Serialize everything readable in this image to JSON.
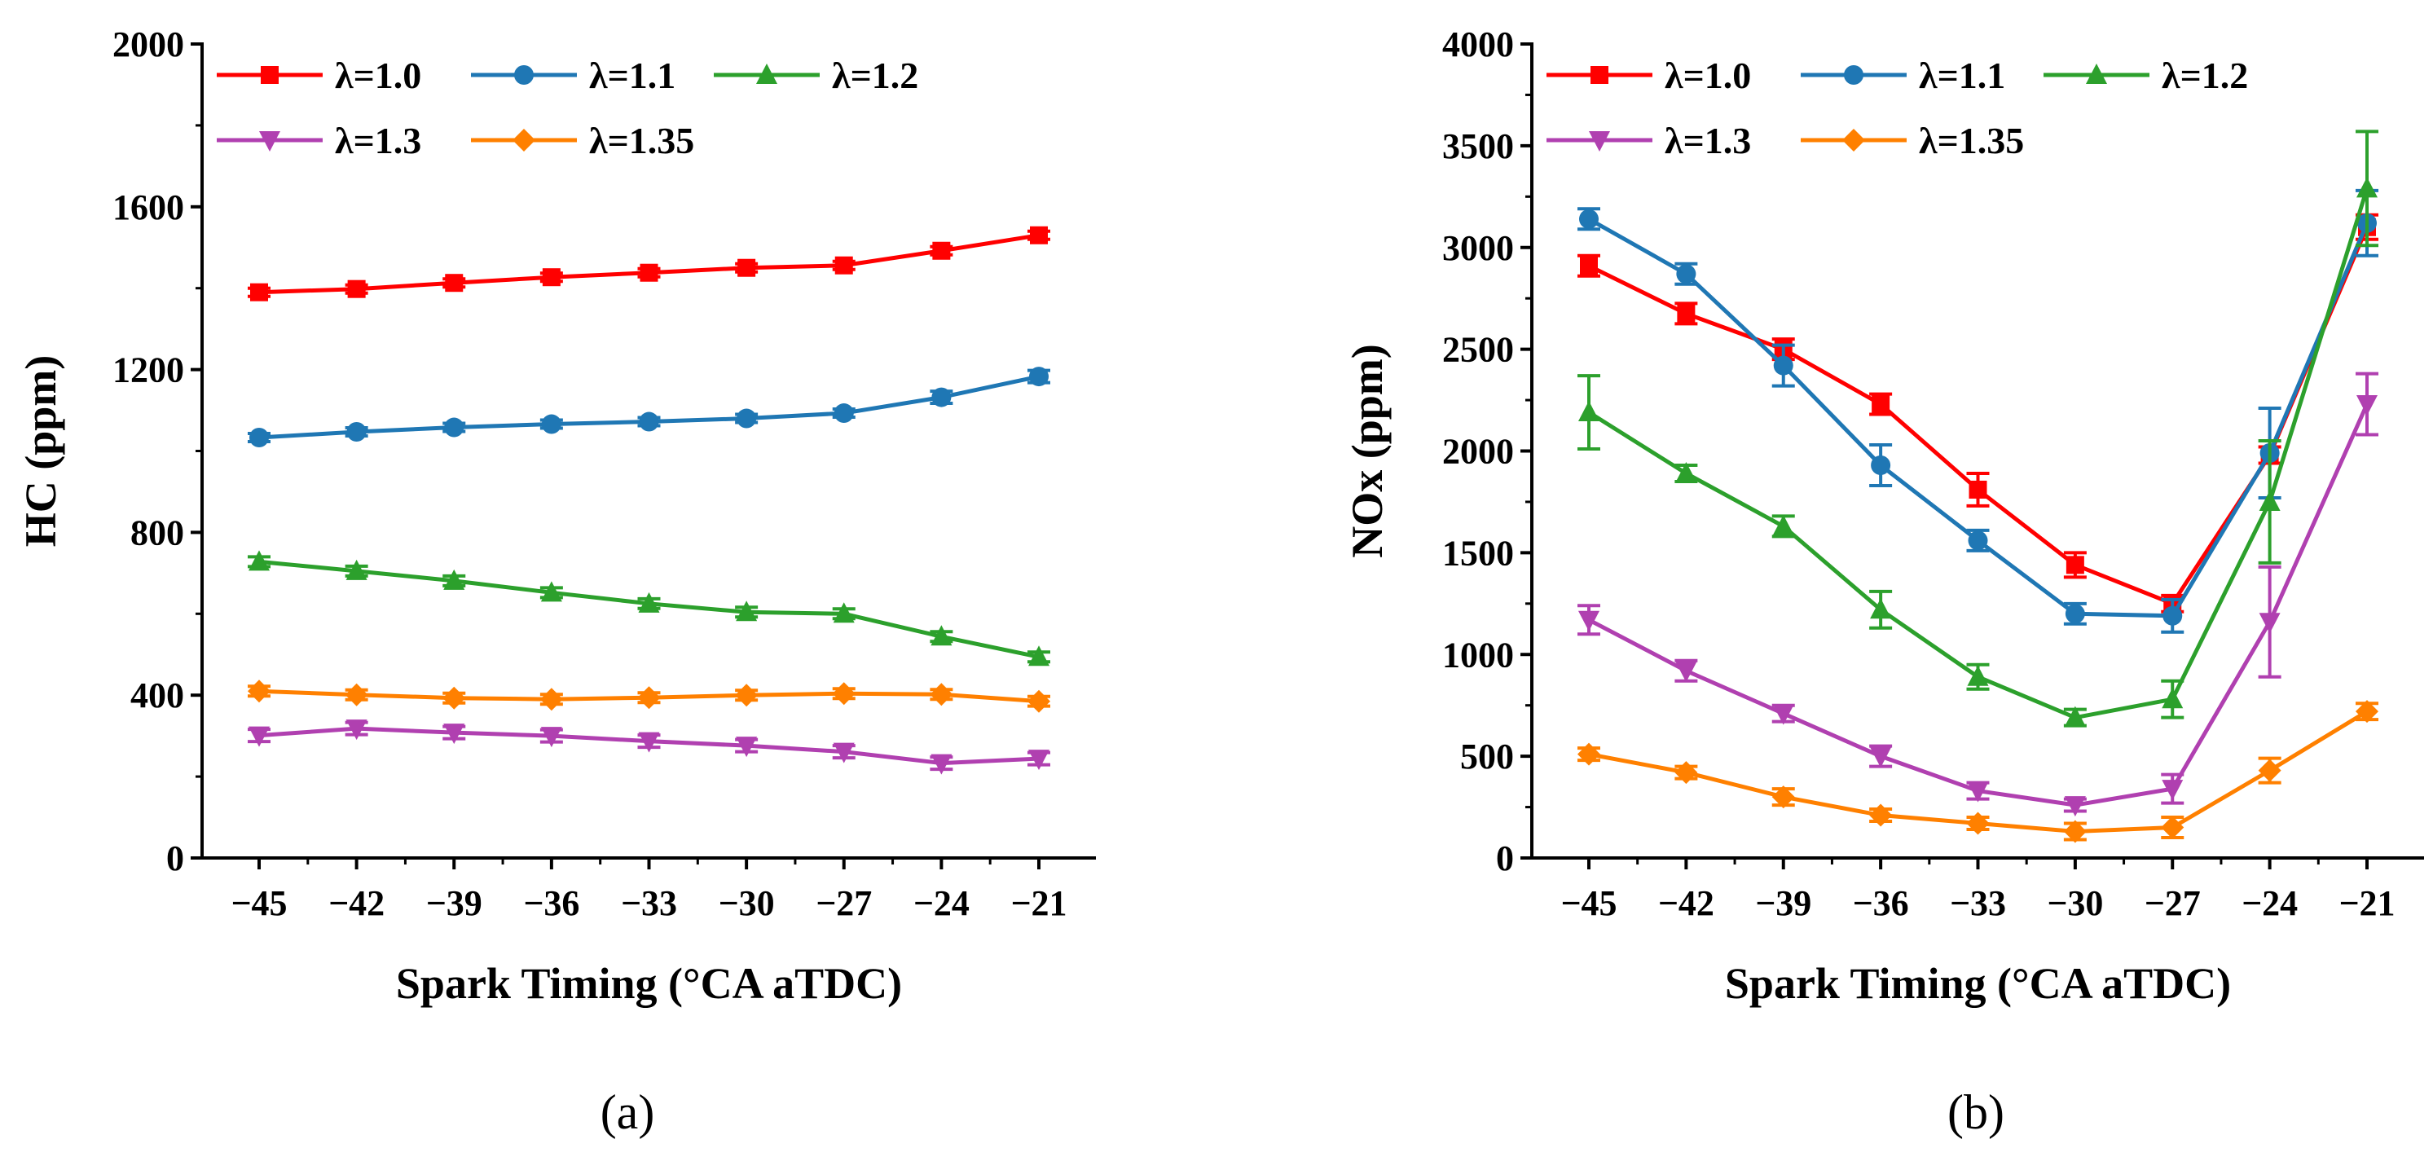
{
  "chart_data": [
    {
      "type": "line",
      "panel_label": "(a)",
      "xlabel": "Spark Timing (°CA aTDC)",
      "ylabel": "HC (ppm)",
      "categories": [
        "−45",
        "−42",
        "−39",
        "−36",
        "−33",
        "−30",
        "−27",
        "−24",
        "−21"
      ],
      "ylim": [
        0,
        2000
      ],
      "yticks": [
        "0",
        "400",
        "800",
        "1200",
        "1600",
        "2000"
      ],
      "legend_position": "top-left",
      "series": [
        {
          "name": "λ=1.0",
          "color": "#ff0000",
          "marker": "square",
          "values": [
            1390,
            1398,
            1413,
            1427,
            1438,
            1450,
            1456,
            1492,
            1530
          ],
          "errors": [
            10,
            10,
            10,
            10,
            10,
            10,
            10,
            10,
            10
          ]
        },
        {
          "name": "λ=1.1",
          "color": "#1f77b4",
          "marker": "circle",
          "values": [
            1033,
            1047,
            1058,
            1066,
            1072,
            1080,
            1093,
            1132,
            1183
          ],
          "errors": [
            10,
            10,
            10,
            10,
            10,
            10,
            10,
            15,
            15
          ]
        },
        {
          "name": "λ=1.2",
          "color": "#2ca02c",
          "marker": "triangle-up",
          "values": [
            728,
            705,
            681,
            652,
            625,
            604,
            600,
            544,
            494
          ],
          "errors": [
            12,
            12,
            12,
            12,
            12,
            12,
            12,
            12,
            12
          ]
        },
        {
          "name": "λ=1.3",
          "color": "#b040b0",
          "marker": "triangle-down",
          "values": [
            301,
            318,
            308,
            300,
            287,
            276,
            261,
            233,
            244
          ],
          "errors": [
            15,
            15,
            15,
            15,
            15,
            15,
            15,
            15,
            15
          ]
        },
        {
          "name": "λ=1.35",
          "color": "#ff8000",
          "marker": "diamond",
          "values": [
            410,
            401,
            393,
            390,
            394,
            400,
            404,
            402,
            385
          ],
          "errors": [
            12,
            12,
            12,
            12,
            12,
            12,
            12,
            12,
            12
          ]
        }
      ]
    },
    {
      "type": "line",
      "panel_label": "(b)",
      "xlabel": "Spark Timing (°CA aTDC)",
      "ylabel": "NOx (ppm)",
      "categories": [
        "−45",
        "−42",
        "−39",
        "−36",
        "−33",
        "−30",
        "−27",
        "−24",
        "−21"
      ],
      "ylim": [
        0,
        4000
      ],
      "yticks": [
        "0",
        "500",
        "1000",
        "1500",
        "2000",
        "2500",
        "3000",
        "3500",
        "4000"
      ],
      "legend_position": "top-left",
      "series": [
        {
          "name": "λ=1.0",
          "color": "#ff0000",
          "marker": "square",
          "values": [
            2910,
            2675,
            2500,
            2230,
            1810,
            1440,
            1250,
            1980,
            3100
          ],
          "errors": [
            50,
            50,
            50,
            50,
            80,
            60,
            40,
            40,
            60
          ]
        },
        {
          "name": "λ=1.1",
          "color": "#1f77b4",
          "marker": "circle",
          "values": [
            3140,
            2870,
            2420,
            1930,
            1560,
            1200,
            1190,
            1990,
            3120
          ],
          "errors": [
            50,
            50,
            100,
            100,
            50,
            50,
            80,
            220,
            160
          ]
        },
        {
          "name": "λ=1.2",
          "color": "#2ca02c",
          "marker": "triangle-up",
          "values": [
            2190,
            1890,
            1630,
            1220,
            890,
            690,
            780,
            1750,
            3290
          ],
          "errors": [
            180,
            40,
            50,
            90,
            60,
            40,
            90,
            300,
            280
          ]
        },
        {
          "name": "λ=1.3",
          "color": "#b040b0",
          "marker": "triangle-down",
          "values": [
            1170,
            920,
            710,
            500,
            330,
            260,
            340,
            1160,
            2230
          ],
          "errors": [
            70,
            50,
            40,
            50,
            40,
            30,
            70,
            270,
            150
          ]
        },
        {
          "name": "λ=1.35",
          "color": "#ff8000",
          "marker": "diamond",
          "values": [
            510,
            420,
            300,
            210,
            170,
            130,
            150,
            430,
            720
          ],
          "errors": [
            30,
            30,
            40,
            30,
            30,
            40,
            50,
            60,
            40
          ]
        }
      ]
    }
  ]
}
